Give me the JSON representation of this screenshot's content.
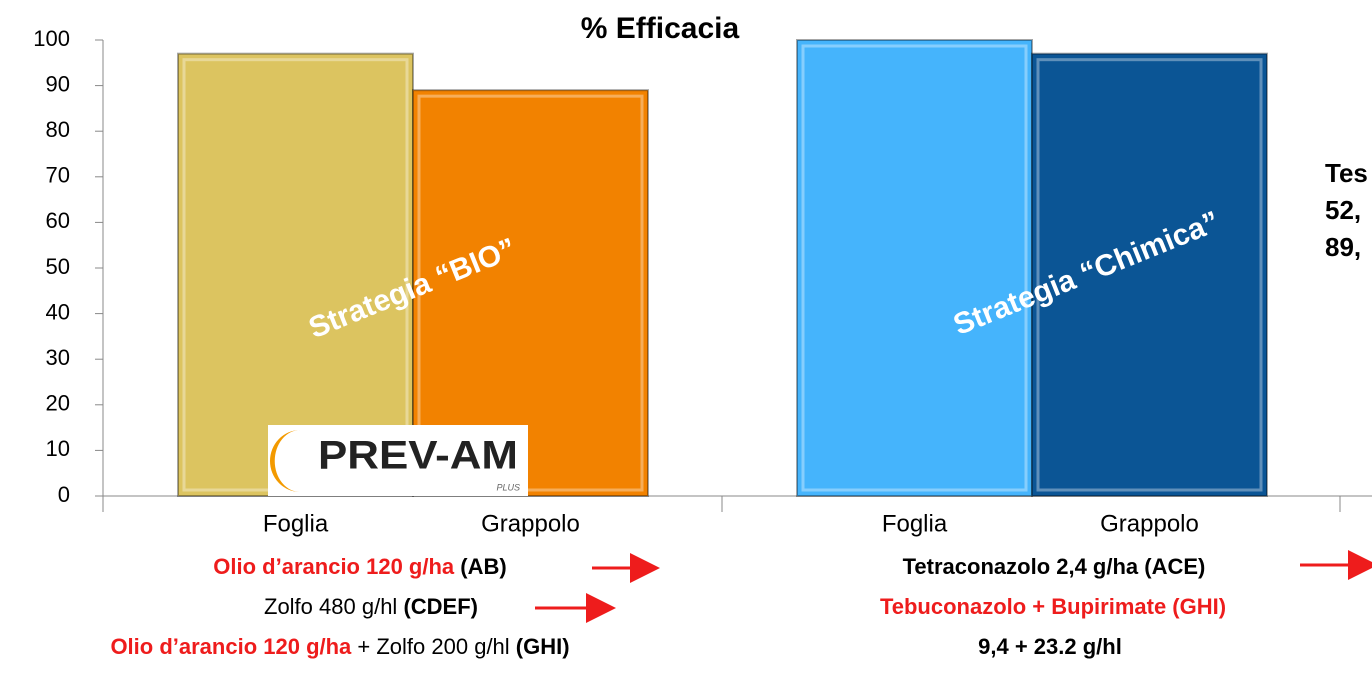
{
  "chart_data": {
    "type": "bar",
    "title": "% Efficacia",
    "categories": [
      "Foglia",
      "Grappolo",
      "Foglia",
      "Grappolo"
    ],
    "values": [
      97,
      89,
      100,
      97
    ],
    "colors": [
      "#dcc460",
      "#f28200",
      "#45b4fc",
      "#0b5595"
    ],
    "groups": [
      "Strategia “BIO”",
      "Strategia “Chimica”"
    ],
    "ylim": [
      0,
      100
    ],
    "yticks": [
      0,
      10,
      20,
      30,
      40,
      50,
      60,
      70,
      80,
      90,
      100
    ],
    "grid": false,
    "side_text": [
      "Tes",
      "52,",
      "89,"
    ],
    "logo": {
      "name": "PREV-AM",
      "sub": "PLUS"
    },
    "notes_left": [
      [
        {
          "text": "Olio d’arancio 120 g/ha",
          "style": "red-bold"
        },
        {
          "text": "  (AB)",
          "style": "bold"
        }
      ],
      [
        {
          "text": "Zolfo 480 g/hl ",
          "style": "plain"
        },
        {
          "text": "(CDEF)",
          "style": "bold"
        }
      ],
      [
        {
          "text": "Olio d’arancio 120 g/ha",
          "style": "red-bold"
        },
        {
          "text": " + Zolfo 200 g/hl ",
          "style": "plain"
        },
        {
          "text": "(GHI)",
          "style": "bold"
        }
      ]
    ],
    "notes_right": [
      [
        {
          "text": "Tetraconazolo 2,4 g/ha (ACE)",
          "style": "bold"
        }
      ],
      [
        {
          "text": "Tebuconazolo + Bupirimate (GHI)",
          "style": "red-bold"
        }
      ],
      [
        {
          "text": "9,4 + 23.2 g/hl",
          "style": "bold"
        }
      ]
    ]
  }
}
